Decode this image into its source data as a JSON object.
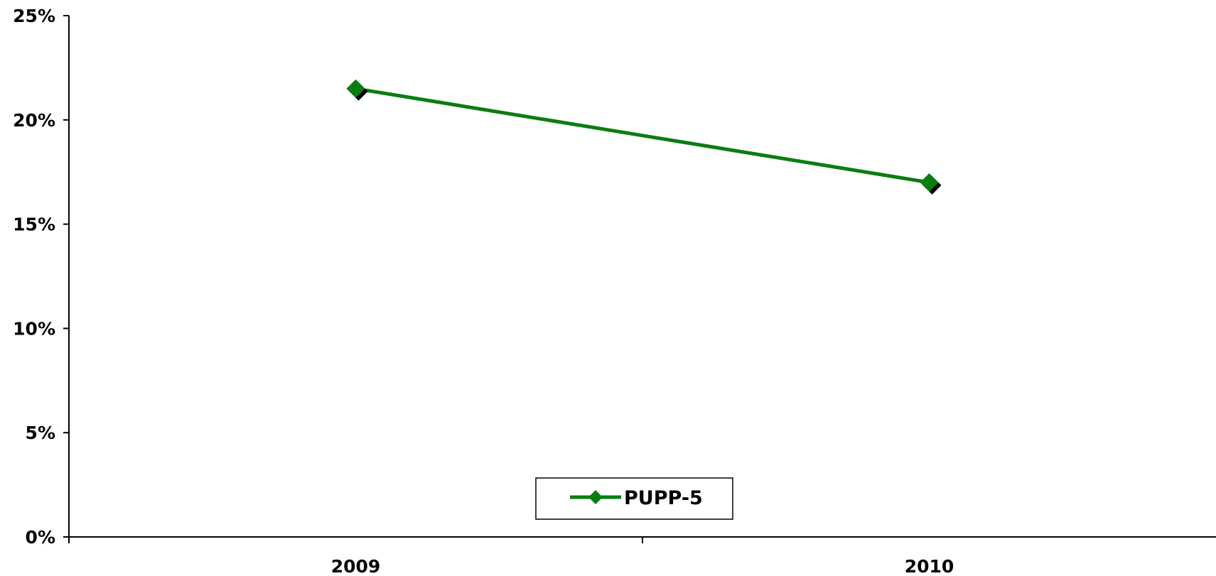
{
  "chart_data": {
    "type": "line",
    "categories": [
      "2009",
      "2010"
    ],
    "series": [
      {
        "name": "PUPP-5",
        "values": [
          21.5,
          17.0
        ],
        "color": "#0a7d12",
        "marker": "diamond"
      }
    ],
    "ylim": [
      0,
      25
    ],
    "yticks": [
      0,
      5,
      10,
      15,
      20,
      25
    ],
    "ytick_labels": [
      "0%",
      "5%",
      "10%",
      "15%",
      "20%",
      "25%"
    ],
    "y_unit": "%",
    "grid": false,
    "legend": {
      "entries": [
        "PUPP-5"
      ],
      "placement": "bottom-center"
    }
  }
}
